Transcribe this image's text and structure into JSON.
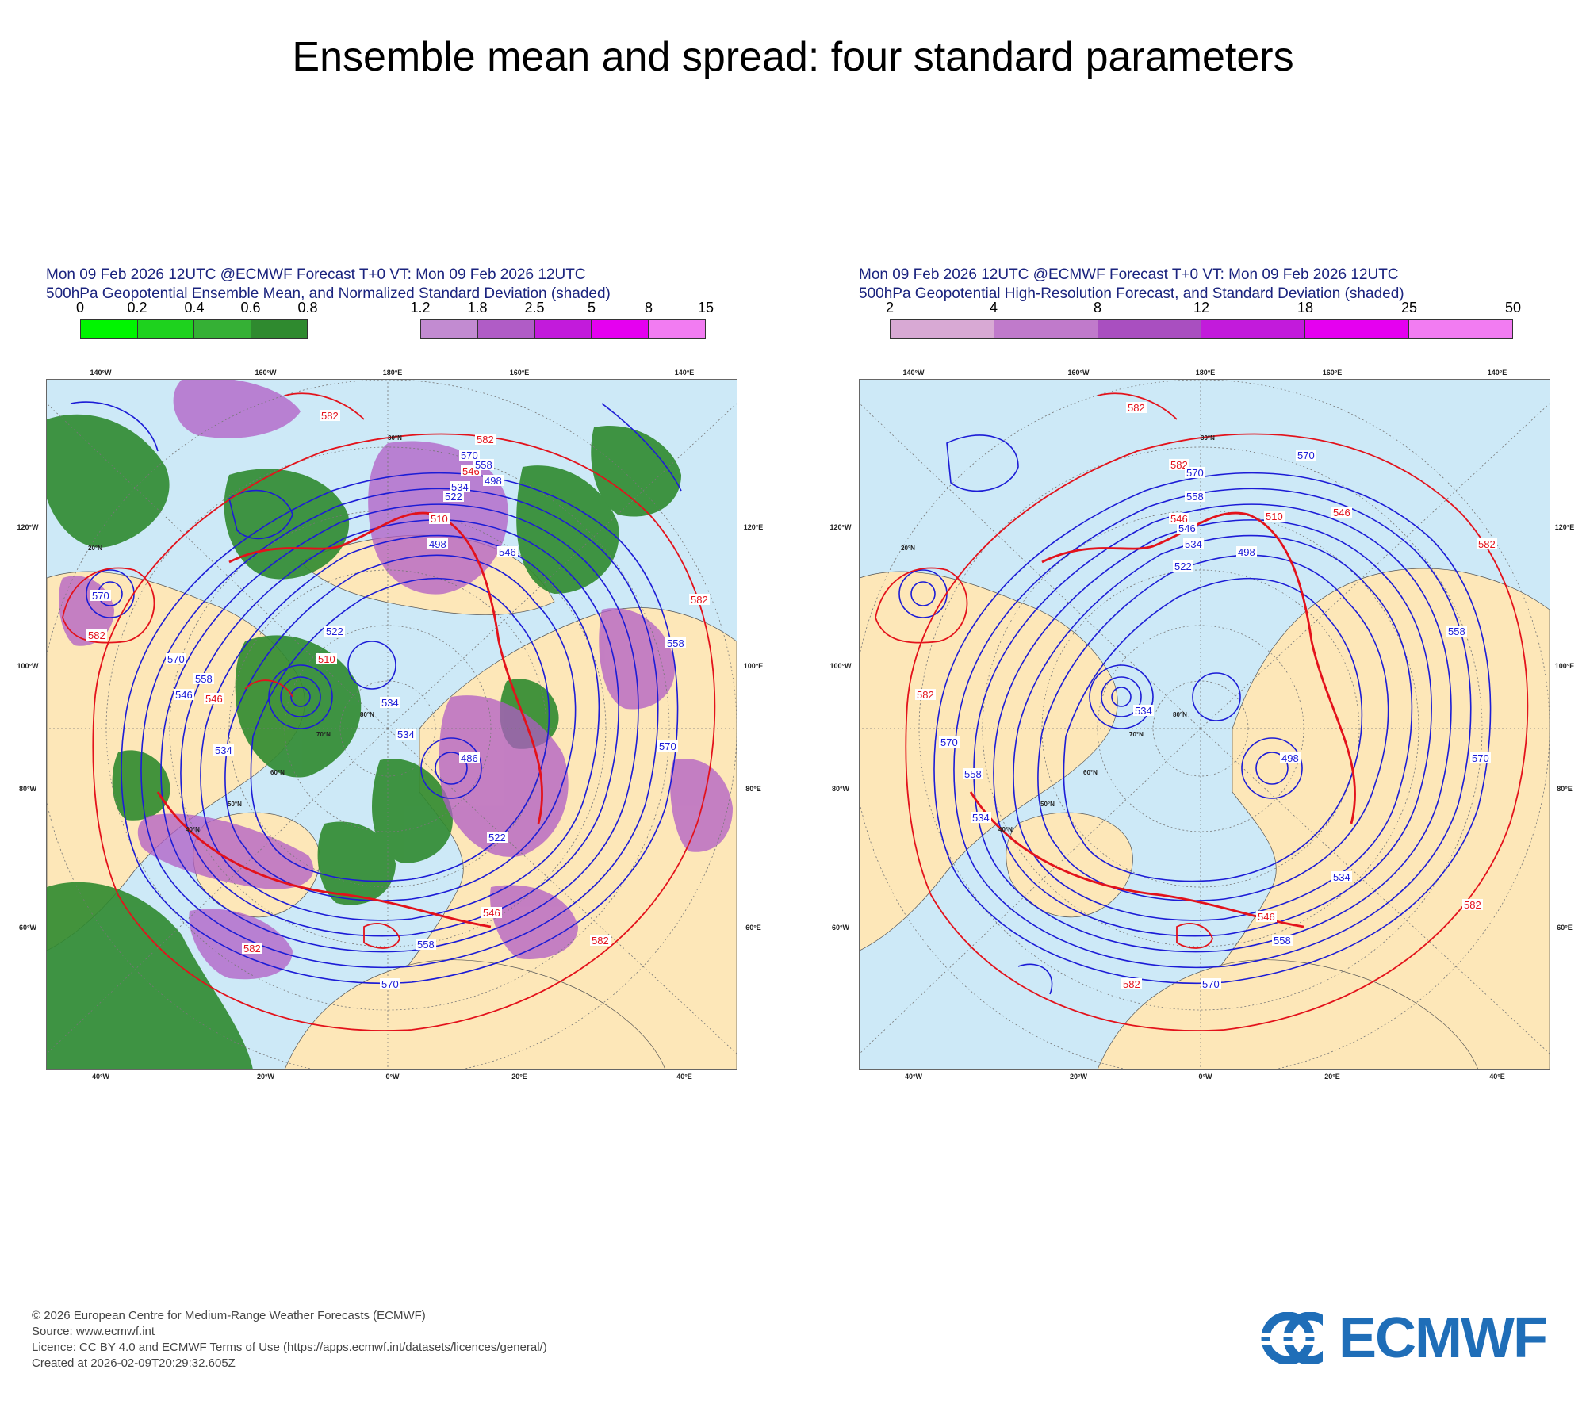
{
  "page": {
    "title": "Ensemble mean and spread: four standard parameters"
  },
  "panels": [
    {
      "title_line1": "Mon 09 Feb 2026 12UTC @ECMWF Forecast T+0 VT: Mon 09 Feb 2026 12UTC",
      "title_line2": "500hPa Geopotential Ensemble Mean, and Normalized Standard Deviation (shaded)",
      "colorbar_green": {
        "ticks": [
          "0",
          "0.2",
          "0.4",
          "0.6",
          "0.8"
        ],
        "colors": [
          "#00f500",
          "#1ed21e",
          "#35b035",
          "#2f8a2f"
        ]
      },
      "colorbar_purple": {
        "ticks": [
          "1.2",
          "1.8",
          "2.5",
          "5",
          "8",
          "15"
        ],
        "colors": [
          "#c28bd1",
          "#b05cc6",
          "#c21bdb",
          "#e500f0",
          "#f27cf2"
        ]
      },
      "contours": {
        "red": [
          "582",
          "582",
          "582",
          "546",
          "546",
          "510",
          "582",
          "582",
          "582",
          "546",
          "510"
        ],
        "blue": [
          "570",
          "558",
          "546",
          "534",
          "522",
          "498",
          "486",
          "558",
          "570",
          "570",
          "546",
          "534",
          "522",
          "534",
          "558",
          "570",
          "558",
          "534",
          "522",
          "570",
          "498"
        ]
      },
      "lon_top": [
        "140°W",
        "160°W",
        "180°E",
        "160°E",
        "140°E"
      ],
      "lon_bottom": [
        "40°W",
        "20°W",
        "0°W",
        "20°E",
        "40°E"
      ],
      "lon_left": [
        "120°W",
        "100°W",
        "80°W",
        "60°W"
      ],
      "lon_right": [
        "120°E",
        "100°E",
        "80°E",
        "60°E"
      ],
      "lat_labels": [
        "30°N",
        "20°N",
        "40°N",
        "50°N",
        "60°N",
        "70°N",
        "80°N"
      ]
    },
    {
      "title_line1": "Mon 09 Feb 2026 12UTC @ECMWF Forecast T+0 VT: Mon 09 Feb 2026 12UTC",
      "title_line2": "500hPa Geopotential High-Resolution Forecast, and Standard Deviation (shaded)",
      "colorbar": {
        "ticks": [
          "2",
          "4",
          "8",
          "12",
          "18",
          "25",
          "50"
        ],
        "colors": [
          "#d8a9d4",
          "#c07acb",
          "#a94fc0",
          "#c21bdb",
          "#e500f0",
          "#f27cf2"
        ]
      },
      "contours": {
        "red": [
          "582",
          "582",
          "582",
          "546",
          "510",
          "546",
          "582",
          "546",
          "582",
          "582"
        ],
        "blue": [
          "570",
          "558",
          "546",
          "534",
          "522",
          "498",
          "570",
          "558",
          "534",
          "570",
          "558",
          "534",
          "570",
          "534",
          "498",
          "558",
          "570"
        ]
      },
      "lon_top": [
        "140°W",
        "160°W",
        "180°E",
        "160°E",
        "140°E"
      ],
      "lon_bottom": [
        "40°W",
        "20°W",
        "0°W",
        "20°E",
        "40°E"
      ],
      "lon_left": [
        "120°W",
        "100°W",
        "80°W",
        "60°W"
      ],
      "lon_right": [
        "120°E",
        "100°E",
        "80°E",
        "60°E"
      ],
      "lat_labels": [
        "30°N",
        "20°N",
        "40°N",
        "50°N",
        "60°N",
        "70°N",
        "80°N"
      ]
    }
  ],
  "footer": {
    "line1": "© 2026 European Centre for Medium-Range Weather Forecasts (ECMWF)",
    "line2": "Source: www.ecmwf.int",
    "line3": "Licence: CC BY 4.0 and ECMWF Terms of Use (https://apps.ecmwf.int/datasets/licences/general/)",
    "line4": "Created at 2026-02-09T20:29:32.605Z"
  },
  "logo": {
    "text": "ECMWF",
    "color": "#1f6eb8"
  },
  "colors": {
    "ocean": "#cde9f7",
    "land": "#fde7b8",
    "contour_blue": "#1c1cd6",
    "contour_red": "#e3121b",
    "title_blue": "#1a237e"
  }
}
